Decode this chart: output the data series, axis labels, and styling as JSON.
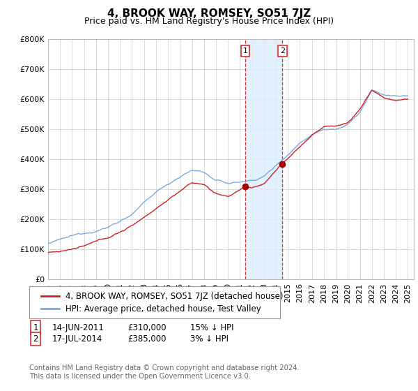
{
  "title": "4, BROOK WAY, ROMSEY, SO51 7JZ",
  "subtitle": "Price paid vs. HM Land Registry's House Price Index (HPI)",
  "ylim": [
    0,
    800000
  ],
  "yticks": [
    0,
    100000,
    200000,
    300000,
    400000,
    500000,
    600000,
    700000,
    800000
  ],
  "ytick_labels": [
    "£0",
    "£100K",
    "£200K",
    "£300K",
    "£400K",
    "£500K",
    "£600K",
    "£700K",
    "£800K"
  ],
  "sale1_date_num": 2011.45,
  "sale2_date_num": 2014.54,
  "sale1_price": 310000,
  "sale2_price": 385000,
  "hpi_line_color": "#7aaadd",
  "price_line_color": "#cc2222",
  "shade_color": "#ddeeff",
  "marker_color": "#aa0000",
  "background_color": "#ffffff",
  "grid_color": "#cccccc",
  "legend_line1": "4, BROOK WAY, ROMSEY, SO51 7JZ (detached house)",
  "legend_line2": "HPI: Average price, detached house, Test Valley",
  "footnote": "Contains HM Land Registry data © Crown copyright and database right 2024.\nThis data is licensed under the Open Government Licence v3.0.",
  "title_fontsize": 11,
  "subtitle_fontsize": 9,
  "tick_fontsize": 8,
  "legend_fontsize": 8.5,
  "info_fontsize": 8.5
}
